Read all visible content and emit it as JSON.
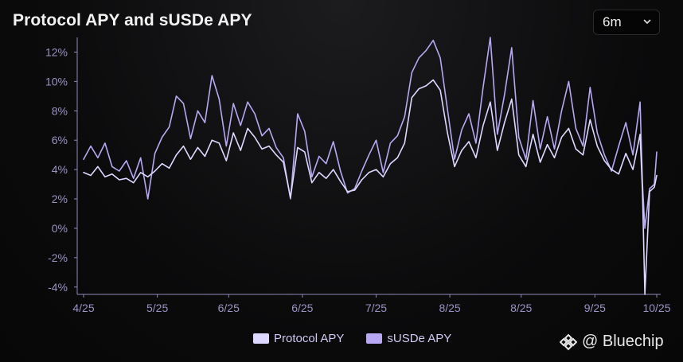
{
  "chart_data": {
    "type": "line",
    "title": "Protocol APY and sUSDe APY",
    "time_range": "6m",
    "xlabel": "",
    "ylabel": "",
    "ylim": [
      -4.5,
      13
    ],
    "yticks": [
      -4,
      -2,
      0,
      2,
      4,
      6,
      8,
      10,
      12
    ],
    "ytick_labels": [
      "-4%",
      "-2%",
      "0%",
      "2%",
      "4%",
      "6%",
      "8%",
      "10%",
      "12%"
    ],
    "xlim": [
      0,
      24
    ],
    "xticks": [
      0,
      3.1,
      6.1,
      9.2,
      12.3,
      15.4,
      18.4,
      21.5,
      24.1
    ],
    "xtick_labels": [
      "4/25",
      "5/25",
      "6/25",
      "6/25",
      "7/25",
      "8/25",
      "8/25",
      "9/25",
      "10/25"
    ],
    "series": [
      {
        "name": "Protocol APY",
        "color": "#dcd8ff",
        "x": [
          0,
          0.3,
          0.6,
          0.9,
          1.2,
          1.5,
          1.8,
          2.1,
          2.4,
          2.7,
          3.0,
          3.3,
          3.6,
          3.9,
          4.2,
          4.5,
          4.8,
          5.1,
          5.4,
          5.7,
          6.0,
          6.3,
          6.6,
          6.9,
          7.2,
          7.5,
          7.8,
          8.1,
          8.4,
          8.7,
          9.0,
          9.3,
          9.6,
          9.9,
          10.2,
          10.5,
          10.8,
          11.1,
          11.4,
          11.7,
          12.0,
          12.3,
          12.6,
          12.9,
          13.2,
          13.5,
          13.8,
          14.1,
          14.4,
          14.7,
          15.0,
          15.3,
          15.6,
          15.9,
          16.2,
          16.5,
          16.8,
          17.1,
          17.4,
          17.7,
          18.0,
          18.3,
          18.6,
          18.9,
          19.2,
          19.5,
          19.8,
          20.1,
          20.4,
          20.7,
          21.0,
          21.3,
          21.6,
          21.9,
          22.2,
          22.5,
          22.8,
          23.1,
          23.4,
          23.5,
          23.6,
          23.8,
          24.0,
          24.1
        ],
        "values": [
          3.8,
          3.6,
          4.2,
          3.5,
          3.7,
          3.3,
          3.4,
          3.1,
          3.8,
          3.5,
          3.9,
          4.4,
          4.1,
          5.0,
          5.6,
          4.7,
          5.5,
          4.9,
          6.0,
          5.8,
          4.6,
          6.5,
          5.3,
          6.8,
          6.2,
          5.4,
          5.6,
          5.0,
          4.5,
          2.1,
          5.5,
          5.2,
          3.1,
          3.8,
          3.4,
          4.0,
          3.2,
          2.5,
          2.6,
          3.3,
          3.8,
          4.0,
          3.5,
          4.4,
          4.8,
          5.8,
          8.9,
          9.5,
          9.7,
          10.1,
          9.4,
          6.5,
          4.2,
          5.3,
          5.9,
          4.8,
          7.0,
          8.6,
          5.3,
          7.2,
          8.8,
          5.0,
          4.2,
          6.4,
          4.5,
          5.7,
          4.8,
          6.2,
          6.8,
          5.4,
          5.0,
          7.4,
          5.6,
          4.6,
          4.0,
          3.7,
          5.1,
          4.0,
          6.4,
          2.5,
          -4.5,
          2.5,
          2.8,
          3.6
        ]
      },
      {
        "name": "sUSDe APY",
        "color": "#b8a7f2",
        "x": [
          0,
          0.3,
          0.6,
          0.9,
          1.2,
          1.5,
          1.8,
          2.1,
          2.4,
          2.7,
          3.0,
          3.3,
          3.6,
          3.9,
          4.2,
          4.5,
          4.8,
          5.1,
          5.4,
          5.7,
          6.0,
          6.3,
          6.6,
          6.9,
          7.2,
          7.5,
          7.8,
          8.1,
          8.4,
          8.7,
          9.0,
          9.3,
          9.6,
          9.9,
          10.2,
          10.5,
          10.8,
          11.1,
          11.4,
          11.7,
          12.0,
          12.3,
          12.6,
          12.9,
          13.2,
          13.5,
          13.8,
          14.1,
          14.4,
          14.7,
          15.0,
          15.3,
          15.6,
          15.9,
          16.2,
          16.5,
          16.8,
          17.1,
          17.4,
          17.7,
          18.0,
          18.3,
          18.6,
          18.9,
          19.2,
          19.5,
          19.8,
          20.1,
          20.4,
          20.7,
          21.0,
          21.3,
          21.6,
          21.9,
          22.2,
          22.5,
          22.8,
          23.1,
          23.4,
          23.5,
          23.6,
          23.8,
          24.0,
          24.1
        ],
        "values": [
          4.7,
          5.6,
          4.8,
          5.8,
          4.2,
          3.9,
          4.6,
          3.4,
          4.8,
          2.0,
          5.1,
          6.2,
          6.9,
          9.0,
          8.5,
          6.1,
          8.0,
          7.2,
          10.4,
          8.8,
          5.6,
          8.5,
          7.0,
          8.6,
          7.8,
          6.3,
          6.8,
          5.5,
          4.8,
          2.0,
          7.8,
          6.6,
          3.5,
          4.9,
          4.4,
          5.9,
          3.9,
          2.4,
          2.7,
          3.9,
          5.0,
          6.0,
          3.8,
          5.8,
          6.3,
          7.6,
          10.6,
          11.6,
          12.1,
          12.8,
          11.6,
          8.1,
          4.7,
          6.7,
          7.8,
          5.8,
          9.6,
          13.0,
          6.4,
          9.1,
          12.3,
          6.2,
          4.7,
          8.7,
          5.4,
          7.6,
          5.4,
          8.0,
          10.0,
          6.8,
          5.6,
          9.6,
          6.5,
          5.0,
          3.9,
          5.6,
          7.2,
          5.0,
          8.6,
          3.0,
          0.0,
          2.7,
          3.0,
          5.2
        ]
      }
    ],
    "legend": [
      "Protocol APY",
      "sUSDe APY"
    ],
    "legend_position": "bottom-center",
    "grid": false
  },
  "controls": {
    "range_label": "6m"
  },
  "watermark": {
    "text": "@ Bluechip"
  }
}
